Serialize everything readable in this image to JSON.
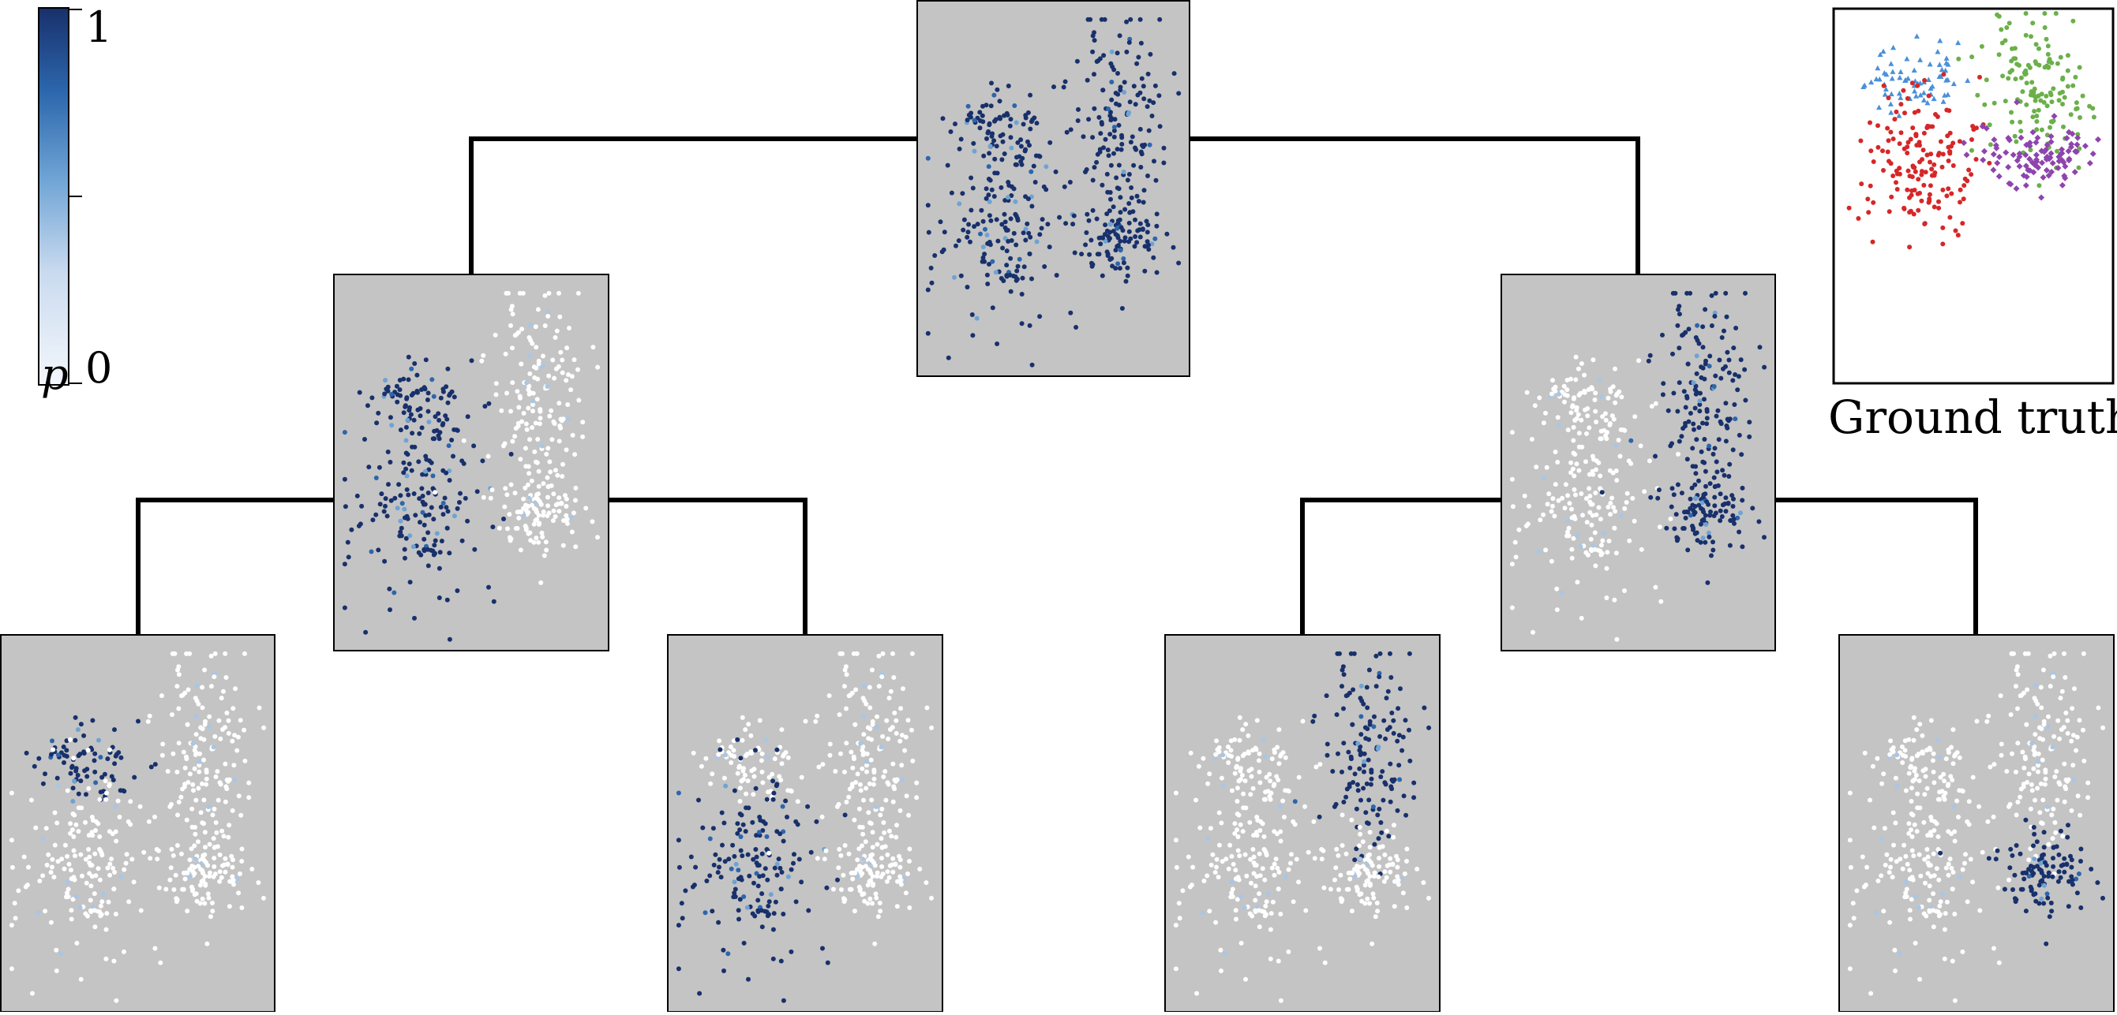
{
  "colorbar": {
    "max_label": "1",
    "min_label": "0",
    "variable_label": "p",
    "colors": [
      "#f4f7fc",
      "#c9daef",
      "#6ea3d4",
      "#2c66ac",
      "#18306b"
    ]
  },
  "ground_truth": {
    "label": "Ground truth",
    "clusters": [
      {
        "color": "#4a90d9",
        "marker": "triangle"
      },
      {
        "color": "#6bb04a",
        "marker": "circle"
      },
      {
        "color": "#d62728",
        "marker": "circle"
      },
      {
        "color": "#8e44ad",
        "marker": "diamond"
      }
    ]
  },
  "tree": {
    "node_color": "#c4c4c4",
    "point_dark": "#18306b",
    "point_light": "#ffffff"
  }
}
